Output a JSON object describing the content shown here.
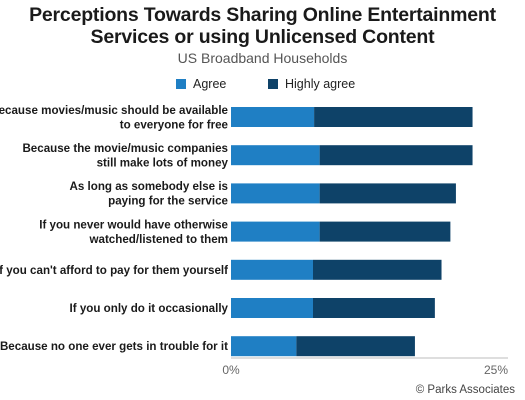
{
  "chart_data": {
    "type": "bar",
    "orientation": "horizontal",
    "stacked": true,
    "title": "Perceptions Towards Sharing Online Entertainment\nServices or using Unlicensed Content",
    "subtitle": "US Broadband Households",
    "categories": [
      [
        "Because movies/music should be available",
        "to everyone for free"
      ],
      [
        "Because the movie/music companies",
        "still make lots of money"
      ],
      [
        "As long as somebody else is",
        "paying for the service"
      ],
      [
        "If you never would have otherwise",
        "watched/listened to them"
      ],
      [
        "If you can't afford to pay for them yourself"
      ],
      [
        "If you only do it occasionally"
      ],
      [
        "Because no one ever gets in trouble for it"
      ]
    ],
    "series": [
      {
        "name": "Agree",
        "color": "#1f7fc4",
        "values": [
          7.5,
          8.0,
          8.0,
          8.0,
          7.4,
          7.4,
          5.9
        ]
      },
      {
        "name": "Highly agree",
        "color": "#0e4268",
        "values": [
          14.3,
          13.8,
          12.3,
          11.8,
          11.6,
          11.0,
          10.7
        ]
      }
    ],
    "xlim": [
      0,
      25
    ],
    "x_ticks": [
      "0%",
      "25%"
    ],
    "legend": "top",
    "grid": false,
    "source": "© Parks Associates"
  }
}
